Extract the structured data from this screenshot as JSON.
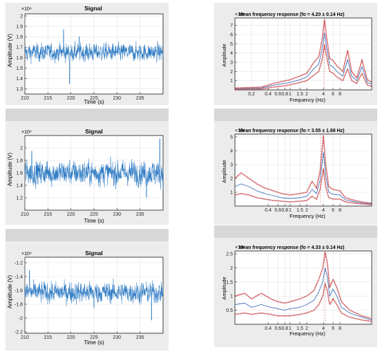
{
  "colors": {
    "panel": "#ececec",
    "separator": "#d7d7d7",
    "signal": "#2e7bc4",
    "response_red": "#c0282b",
    "response_blue": "#3e6fb8",
    "grid": "#e2e2e2"
  },
  "chart_data": [
    {
      "type": "line",
      "title": "Signal",
      "xlabel": "Time (s)",
      "ylabel": "Amplitude (V)",
      "exponent": "×10⁴",
      "xlim": [
        210,
        240
      ],
      "ylim": [
        1.25,
        2.02
      ],
      "xticks": [
        210,
        215,
        220,
        225,
        230,
        235
      ],
      "yticks": [
        1.3,
        1.4,
        1.5,
        1.6,
        1.7,
        1.8,
        1.9,
        2
      ],
      "series": [
        {
          "baseline": 1.65,
          "noise": 0.055,
          "spikes": [
            [
              219.7,
              -0.3
            ],
            [
              218.4,
              0.22
            ],
            [
              221.8,
              0.15
            ]
          ]
        }
      ],
      "grid": true
    },
    {
      "type": "line",
      "title": "Mean frequency response (fo = 4.20 ± 0.14 Hz)",
      "xlabel": "Frequency (Hz)",
      "ylabel": "Amplitude",
      "exponent": "×10⁶",
      "xscale": "log",
      "xlim": [
        0.1,
        30
      ],
      "ylim": [
        0,
        7.8
      ],
      "xticks": [
        0.2,
        0.4,
        0.6,
        0.8,
        1,
        1.5,
        2,
        4,
        6,
        8
      ],
      "xtick_labels": [
        "0.2",
        "0.4",
        "0.6",
        "0.8",
        "1",
        "1.5",
        "2",
        "4",
        "6",
        "8"
      ],
      "yticks": [
        1,
        2,
        3,
        4,
        5,
        6,
        7
      ],
      "f0": 4.2,
      "series": [
        {
          "role": "upper",
          "points": [
            [
              0.1,
              0.2
            ],
            [
              0.3,
              0.3
            ],
            [
              0.5,
              0.7
            ],
            [
              0.7,
              0.9
            ],
            [
              1,
              1.1
            ],
            [
              1.5,
              1.5
            ],
            [
              2,
              1.8
            ],
            [
              2.7,
              3.0
            ],
            [
              3.3,
              3.6
            ],
            [
              3.8,
              5.5
            ],
            [
              4.2,
              7.6
            ],
            [
              4.6,
              5.6
            ],
            [
              5.2,
              3.4
            ],
            [
              6,
              3.2
            ],
            [
              7,
              2.6
            ],
            [
              9,
              2.0
            ],
            [
              11,
              4.3
            ],
            [
              13,
              2.0
            ],
            [
              16,
              1.3
            ],
            [
              20,
              3.2
            ],
            [
              25,
              1.1
            ],
            [
              30,
              0.8
            ]
          ]
        },
        {
          "role": "mean",
          "points": [
            [
              0.1,
              0.12
            ],
            [
              0.3,
              0.2
            ],
            [
              0.5,
              0.5
            ],
            [
              0.7,
              0.65
            ],
            [
              1,
              0.8
            ],
            [
              1.5,
              1.1
            ],
            [
              2,
              1.4
            ],
            [
              2.7,
              2.3
            ],
            [
              3.3,
              2.8
            ],
            [
              3.8,
              4.4
            ],
            [
              4.2,
              6.2
            ],
            [
              4.6,
              4.5
            ],
            [
              5.2,
              2.7
            ],
            [
              6,
              2.5
            ],
            [
              7,
              2.0
            ],
            [
              9,
              1.5
            ],
            [
              11,
              3.3
            ],
            [
              13,
              1.5
            ],
            [
              16,
              1.0
            ],
            [
              20,
              2.5
            ],
            [
              25,
              0.8
            ],
            [
              30,
              0.6
            ]
          ]
        },
        {
          "role": "lower",
          "points": [
            [
              0.1,
              0.05
            ],
            [
              0.3,
              0.1
            ],
            [
              0.5,
              0.3
            ],
            [
              0.7,
              0.4
            ],
            [
              1,
              0.55
            ],
            [
              1.5,
              0.8
            ],
            [
              2,
              1.0
            ],
            [
              2.7,
              1.6
            ],
            [
              3.3,
              2.0
            ],
            [
              3.8,
              3.3
            ],
            [
              4.2,
              4.9
            ],
            [
              4.6,
              3.5
            ],
            [
              5.2,
              2.0
            ],
            [
              6,
              1.8
            ],
            [
              7,
              1.4
            ],
            [
              9,
              1.0
            ],
            [
              11,
              2.3
            ],
            [
              13,
              1.0
            ],
            [
              16,
              0.7
            ],
            [
              20,
              1.8
            ],
            [
              25,
              0.5
            ],
            [
              30,
              0.4
            ]
          ]
        }
      ],
      "grid": true
    },
    {
      "type": "line",
      "title": "Signal",
      "xlabel": "Time (s)",
      "ylabel": "Amplitude (V)",
      "exponent": "×10⁴",
      "xlim": [
        210,
        240
      ],
      "ylim": [
        1.0,
        2.2
      ],
      "xticks": [
        210,
        215,
        220,
        225,
        230,
        235
      ],
      "yticks": [
        1.2,
        1.4,
        1.6,
        1.8,
        2
      ],
      "series": [
        {
          "baseline": 1.6,
          "noise": 0.13,
          "spikes": [
            [
              239.3,
              0.55
            ],
            [
              211.5,
              0.35
            ],
            [
              236.4,
              -0.4
            ]
          ]
        }
      ],
      "grid": true
    },
    {
      "type": "line",
      "title": "Mean frequency response (fo = 3.55 ± 1.68 Hz)",
      "xlabel": "Frequency (Hz)",
      "ylabel": "Amplitude",
      "exponent": "×10⁶",
      "xscale": "log",
      "xlim": [
        0.1,
        30
      ],
      "ylim": [
        0,
        5.2
      ],
      "xticks": [
        0.4,
        0.6,
        0.8,
        1,
        1.5,
        2,
        4,
        6,
        8
      ],
      "xtick_labels": [
        "0.4",
        "0.6",
        "0.8",
        "1",
        "1.5",
        "2",
        "4",
        "6",
        "8"
      ],
      "yticks": [
        1,
        2,
        3,
        4,
        5
      ],
      "f0": 3.55,
      "series": [
        {
          "role": "upper",
          "points": [
            [
              0.1,
              2.0
            ],
            [
              0.13,
              2.4
            ],
            [
              0.18,
              2.0
            ],
            [
              0.25,
              1.6
            ],
            [
              0.35,
              1.3
            ],
            [
              0.5,
              1.1
            ],
            [
              0.7,
              0.9
            ],
            [
              1,
              0.8
            ],
            [
              1.5,
              0.9
            ],
            [
              2,
              1.0
            ],
            [
              2.5,
              1.8
            ],
            [
              3,
              1.3
            ],
            [
              3.5,
              2.6
            ],
            [
              4.0,
              5.1
            ],
            [
              4.4,
              3.0
            ],
            [
              5,
              1.4
            ],
            [
              6,
              1.2
            ],
            [
              8,
              1.1
            ],
            [
              10,
              0.6
            ],
            [
              15,
              0.4
            ],
            [
              20,
              0.3
            ],
            [
              30,
              0.2
            ]
          ]
        },
        {
          "role": "mean",
          "points": [
            [
              0.1,
              1.4
            ],
            [
              0.13,
              1.6
            ],
            [
              0.18,
              1.4
            ],
            [
              0.25,
              1.1
            ],
            [
              0.35,
              0.9
            ],
            [
              0.5,
              0.75
            ],
            [
              0.7,
              0.6
            ],
            [
              1,
              0.55
            ],
            [
              1.5,
              0.6
            ],
            [
              2,
              0.7
            ],
            [
              2.5,
              1.2
            ],
            [
              3,
              0.9
            ],
            [
              3.5,
              1.9
            ],
            [
              4.0,
              3.9
            ],
            [
              4.4,
              2.2
            ],
            [
              5,
              1.0
            ],
            [
              6,
              0.85
            ],
            [
              8,
              0.8
            ],
            [
              10,
              0.45
            ],
            [
              15,
              0.3
            ],
            [
              20,
              0.22
            ],
            [
              30,
              0.15
            ]
          ]
        },
        {
          "role": "lower",
          "points": [
            [
              0.1,
              0.8
            ],
            [
              0.13,
              0.9
            ],
            [
              0.18,
              0.8
            ],
            [
              0.25,
              0.6
            ],
            [
              0.35,
              0.5
            ],
            [
              0.5,
              0.4
            ],
            [
              0.7,
              0.35
            ],
            [
              1,
              0.3
            ],
            [
              1.5,
              0.35
            ],
            [
              2,
              0.4
            ],
            [
              2.5,
              0.7
            ],
            [
              3,
              0.5
            ],
            [
              3.5,
              1.2
            ],
            [
              4.0,
              2.7
            ],
            [
              4.4,
              1.4
            ],
            [
              5,
              0.6
            ],
            [
              6,
              0.5
            ],
            [
              8,
              0.5
            ],
            [
              10,
              0.3
            ],
            [
              15,
              0.2
            ],
            [
              20,
              0.15
            ],
            [
              30,
              0.1
            ]
          ]
        }
      ],
      "grid": true
    },
    {
      "type": "line",
      "title": "Signal",
      "xlabel": "Time (s)",
      "ylabel": "Amplitude (V)",
      "exponent": "×10⁴",
      "xlim": [
        210,
        240
      ],
      "ylim": [
        -2.22,
        -1.12
      ],
      "xticks": [
        210,
        215,
        220,
        225,
        230,
        235
      ],
      "yticks": [
        -2.2,
        -2,
        -1.8,
        -1.6,
        -1.4,
        -1.2
      ],
      "series": [
        {
          "baseline": -1.63,
          "noise": 0.1,
          "spikes": [
            [
              211.0,
              0.32
            ],
            [
              237.5,
              -0.4
            ],
            [
              225.0,
              -0.22
            ]
          ]
        }
      ],
      "grid": true
    },
    {
      "type": "line",
      "title": "Mean frequency response (fo = 4.33 ± 0.14 Hz)",
      "xlabel": "Frequency (Hz)",
      "ylabel": "Amplitude",
      "exponent": "×10⁶",
      "xscale": "log",
      "xlim": [
        0.1,
        30
      ],
      "ylim": [
        0,
        2.6
      ],
      "xticks": [
        0.4,
        0.6,
        0.8,
        1,
        1.5,
        2,
        4,
        6,
        8
      ],
      "xtick_labels": [
        "0.4",
        "0.6",
        "0.8",
        "1",
        "1.5",
        "2",
        "4",
        "6",
        "8"
      ],
      "yticks": [
        0.5,
        1,
        1.5,
        2,
        2.5
      ],
      "f0": 4.33,
      "series": [
        {
          "role": "upper",
          "points": [
            [
              0.1,
              1.0
            ],
            [
              0.15,
              1.1
            ],
            [
              0.2,
              0.9
            ],
            [
              0.3,
              1.1
            ],
            [
              0.45,
              0.9
            ],
            [
              0.6,
              0.8
            ],
            [
              0.8,
              0.75
            ],
            [
              1,
              0.8
            ],
            [
              1.5,
              0.9
            ],
            [
              2,
              1.0
            ],
            [
              2.7,
              1.2
            ],
            [
              3.3,
              1.6
            ],
            [
              3.9,
              2.0
            ],
            [
              4.3,
              2.55
            ],
            [
              4.7,
              2.2
            ],
            [
              5.2,
              1.3
            ],
            [
              6,
              1.6
            ],
            [
              7,
              1.3
            ],
            [
              8.5,
              0.8
            ],
            [
              12,
              0.5
            ],
            [
              20,
              0.3
            ],
            [
              30,
              0.2
            ]
          ]
        },
        {
          "role": "mean",
          "points": [
            [
              0.1,
              0.7
            ],
            [
              0.15,
              0.75
            ],
            [
              0.2,
              0.6
            ],
            [
              0.3,
              0.7
            ],
            [
              0.45,
              0.6
            ],
            [
              0.6,
              0.55
            ],
            [
              0.8,
              0.5
            ],
            [
              1,
              0.55
            ],
            [
              1.5,
              0.6
            ],
            [
              2,
              0.7
            ],
            [
              2.7,
              0.85
            ],
            [
              3.3,
              1.15
            ],
            [
              3.9,
              1.5
            ],
            [
              4.3,
              2.0
            ],
            [
              4.7,
              1.7
            ],
            [
              5.2,
              1.0
            ],
            [
              6,
              1.25
            ],
            [
              7,
              1.0
            ],
            [
              8.5,
              0.6
            ],
            [
              12,
              0.4
            ],
            [
              20,
              0.25
            ],
            [
              30,
              0.15
            ]
          ]
        },
        {
          "role": "lower",
          "points": [
            [
              0.1,
              0.35
            ],
            [
              0.15,
              0.4
            ],
            [
              0.2,
              0.35
            ],
            [
              0.3,
              0.4
            ],
            [
              0.45,
              0.35
            ],
            [
              0.6,
              0.3
            ],
            [
              0.8,
              0.3
            ],
            [
              1,
              0.3
            ],
            [
              1.5,
              0.35
            ],
            [
              2,
              0.4
            ],
            [
              2.7,
              0.5
            ],
            [
              3.3,
              0.7
            ],
            [
              3.9,
              1.0
            ],
            [
              4.3,
              1.45
            ],
            [
              4.7,
              1.2
            ],
            [
              5.2,
              0.7
            ],
            [
              6,
              0.9
            ],
            [
              7,
              0.7
            ],
            [
              8.5,
              0.4
            ],
            [
              12,
              0.25
            ],
            [
              20,
              0.15
            ],
            [
              30,
              0.1
            ]
          ]
        }
      ],
      "grid": true
    }
  ]
}
